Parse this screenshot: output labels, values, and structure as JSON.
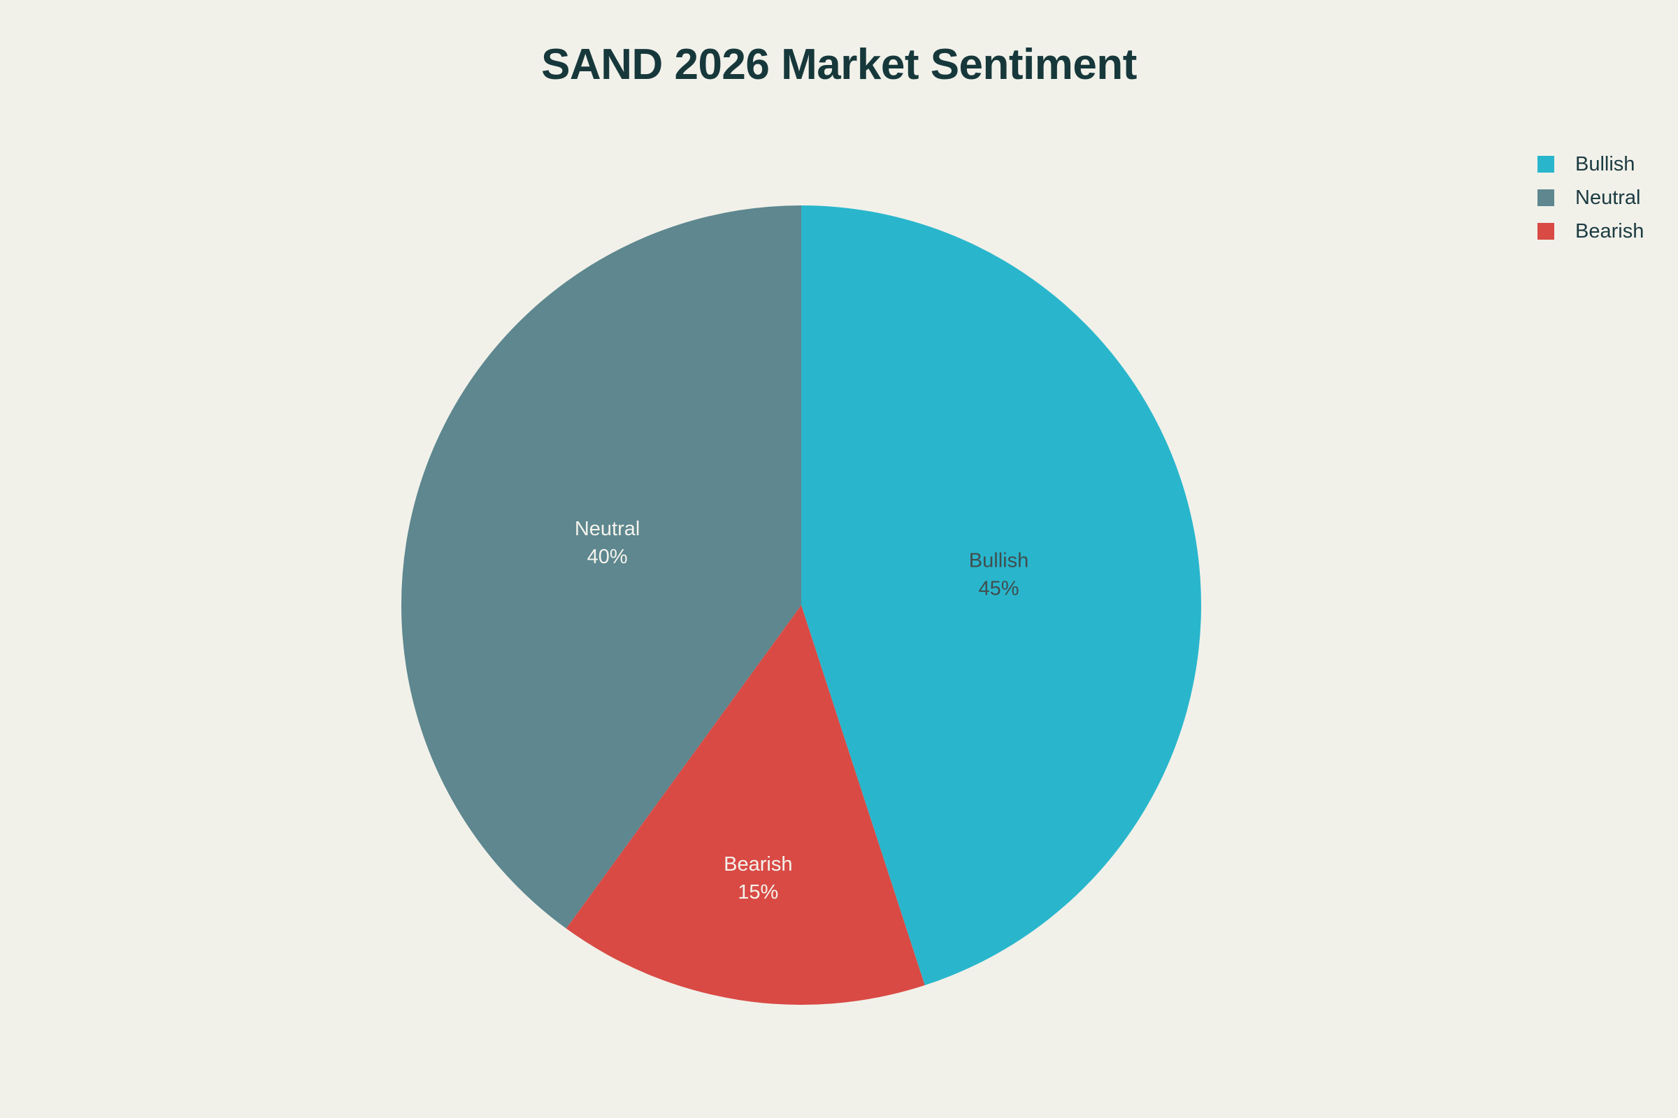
{
  "page": {
    "background": "#F1F1EA"
  },
  "chart": {
    "title": "SAND 2026 Market Sentiment",
    "title_color": "#17383B"
  },
  "legend": {
    "text_color": "#1C3B41",
    "items": [
      {
        "label": "Bullish",
        "color": "#29B6CC"
      },
      {
        "label": "Neutral",
        "color": "#5E878F"
      },
      {
        "label": "Bearish",
        "color": "#D94A45"
      }
    ]
  },
  "chart_data": {
    "type": "pie",
    "title": "SAND 2026 Market Sentiment",
    "categories": [
      "Bullish",
      "Neutral",
      "Bearish"
    ],
    "values": [
      45,
      40,
      15
    ],
    "unit": "%",
    "legend_position": "top-right",
    "start_angle": "12 o'clock",
    "direction": "clockwise",
    "slices": [
      {
        "label": "Bullish",
        "value": 45,
        "display": "Bullish\n45%",
        "color": "#29B6CC",
        "label_color": "#414D4F"
      },
      {
        "label": "Bearish",
        "value": 15,
        "display": "Bearish\n15%",
        "color": "#D94A45",
        "label_color": "#F4F3EC"
      },
      {
        "label": "Neutral",
        "value": 40,
        "display": "Neutral\n40%",
        "color": "#5E878F",
        "label_color": "#F4F3EC"
      }
    ]
  }
}
